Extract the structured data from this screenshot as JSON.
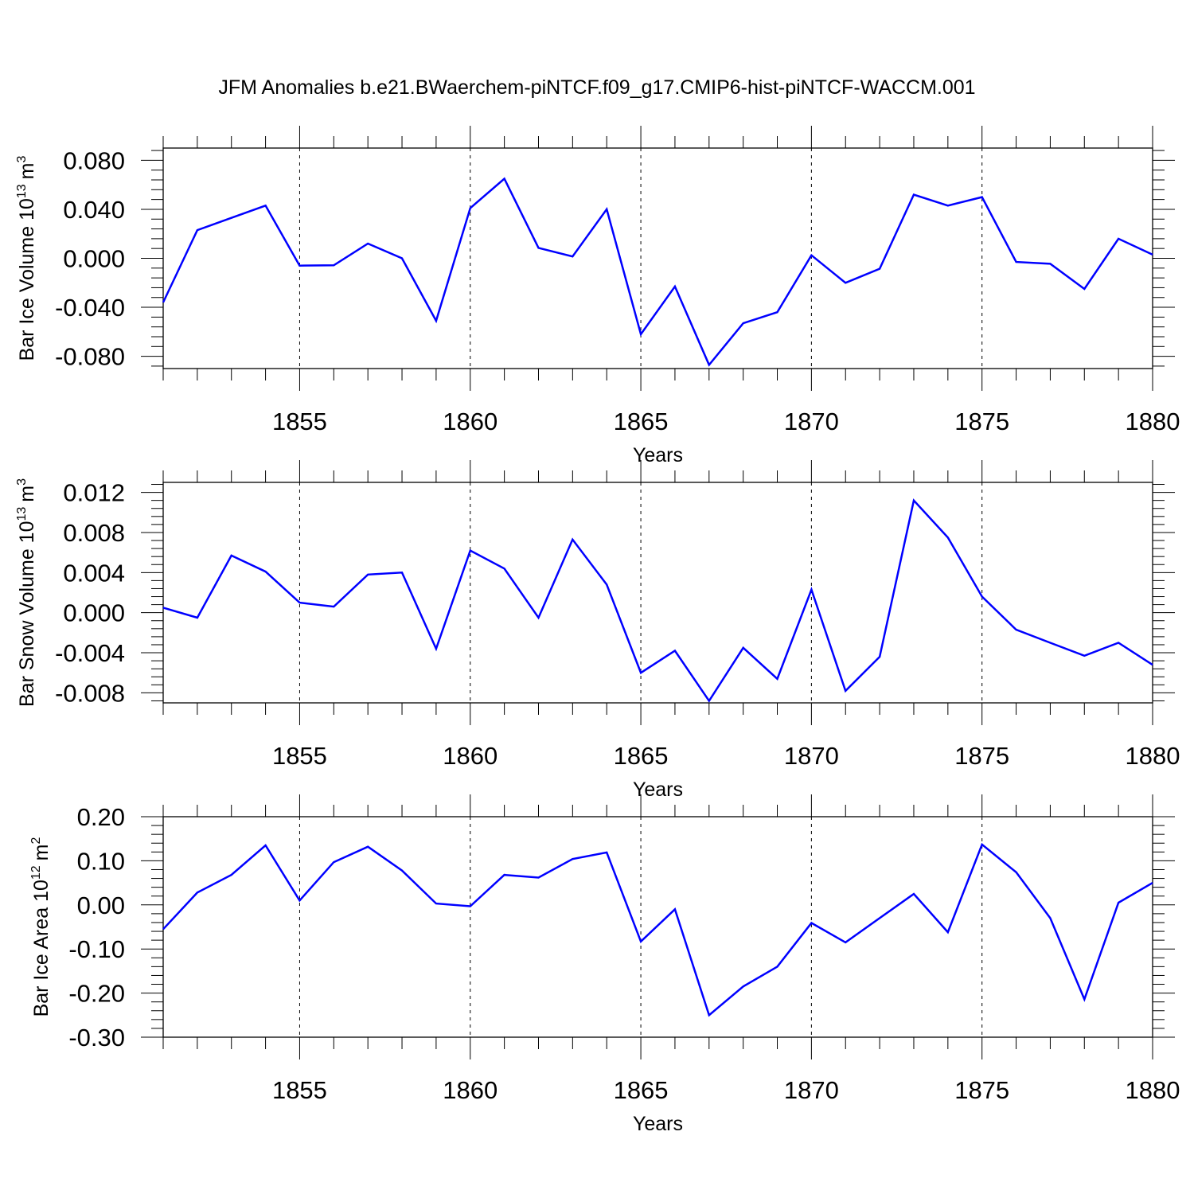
{
  "figure_title": "JFM Anomalies b.e21.BWaerchem-piNTCF.f09_g17.CMIP6-hist-piNTCF-WACCM.001",
  "colors": {
    "line": "#0000ff",
    "axis": "#000000",
    "gridline": "#000000"
  },
  "chart_data": [
    {
      "type": "line",
      "title": "",
      "xlabel": "Years",
      "ylabel": "Bar Ice Volume 10",
      "ylabel_exp": "13",
      "ylabel_unit": "m",
      "ylabel_unit_exp": "3",
      "xlim": [
        1851,
        1880
      ],
      "ylim": [
        -0.09,
        0.09
      ],
      "yticks": [
        0.08,
        0.04,
        0.0,
        -0.04,
        -0.08
      ],
      "ytick_labels": [
        "0.080",
        "0.040",
        "0.000",
        "-0.040",
        "-0.080"
      ],
      "xticks": [
        1855,
        1860,
        1865,
        1870,
        1875,
        1880
      ],
      "xtick_labels": [
        "1855",
        "1860",
        "1865",
        "1870",
        "1875",
        "1880"
      ],
      "vgrid_years": [
        1855,
        1860,
        1865,
        1870,
        1875
      ],
      "x": [
        1851,
        1852,
        1853,
        1854,
        1855,
        1856,
        1857,
        1858,
        1859,
        1860,
        1861,
        1862,
        1863,
        1864,
        1865,
        1866,
        1867,
        1868,
        1869,
        1870,
        1871,
        1872,
        1873,
        1874,
        1875,
        1876,
        1877,
        1878,
        1879,
        1880
      ],
      "series": [
        {
          "name": "Bar Ice Volume",
          "values": [
            -0.036,
            0.023,
            0.033,
            0.043,
            -0.006,
            -0.0057,
            0.012,
            0.0,
            -0.051,
            0.041,
            0.065,
            0.0085,
            0.0015,
            0.04,
            -0.062,
            -0.023,
            -0.087,
            -0.053,
            -0.044,
            0.0025,
            -0.02,
            -0.0085,
            0.052,
            0.043,
            0.05,
            -0.003,
            -0.0045,
            -0.025,
            0.016,
            0.003
          ]
        }
      ]
    },
    {
      "type": "line",
      "title": "",
      "xlabel": "Years",
      "ylabel": "Bar Snow Volume 10",
      "ylabel_exp": "13",
      "ylabel_unit": "m",
      "ylabel_unit_exp": "3",
      "xlim": [
        1851,
        1880
      ],
      "ylim": [
        -0.009,
        0.013
      ],
      "yticks": [
        0.012,
        0.008,
        0.004,
        0.0,
        -0.004,
        -0.008
      ],
      "ytick_labels": [
        "0.012",
        "0.008",
        "0.004",
        "0.000",
        "-0.004",
        "-0.008"
      ],
      "xticks": [
        1855,
        1860,
        1865,
        1870,
        1875,
        1880
      ],
      "xtick_labels": [
        "1855",
        "1860",
        "1865",
        "1870",
        "1875",
        "1880"
      ],
      "vgrid_years": [
        1855,
        1860,
        1865,
        1870,
        1875
      ],
      "x": [
        1851,
        1852,
        1853,
        1854,
        1855,
        1856,
        1857,
        1858,
        1859,
        1860,
        1861,
        1862,
        1863,
        1864,
        1865,
        1866,
        1867,
        1868,
        1869,
        1870,
        1871,
        1872,
        1873,
        1874,
        1875,
        1876,
        1877,
        1878,
        1879,
        1880
      ],
      "series": [
        {
          "name": "Bar Snow Volume",
          "values": [
            0.0005,
            -0.0005,
            0.0057,
            0.0041,
            0.001,
            0.0006,
            0.0038,
            0.004,
            -0.0036,
            0.0062,
            0.0044,
            -0.0005,
            0.0073,
            0.0028,
            -0.006,
            -0.0038,
            -0.0088,
            -0.0035,
            -0.0066,
            0.0023,
            -0.0078,
            -0.0044,
            0.0112,
            0.0075,
            0.0016,
            -0.0017,
            -0.003,
            -0.0043,
            -0.003,
            -0.0052
          ]
        }
      ]
    },
    {
      "type": "line",
      "title": "",
      "xlabel": "Years",
      "ylabel": "Bar Ice Area 10",
      "ylabel_exp": "12",
      "ylabel_unit": "m",
      "ylabel_unit_exp": "2",
      "xlim": [
        1851,
        1880
      ],
      "ylim": [
        -0.3,
        0.2
      ],
      "yticks": [
        0.2,
        0.1,
        0.0,
        -0.1,
        -0.2,
        -0.3
      ],
      "ytick_labels": [
        "0.20",
        "0.10",
        "0.00",
        "-0.10",
        "-0.20",
        "-0.30"
      ],
      "xticks": [
        1855,
        1860,
        1865,
        1870,
        1875,
        1880
      ],
      "xtick_labels": [
        "1855",
        "1860",
        "1865",
        "1870",
        "1875",
        "1880"
      ],
      "vgrid_years": [
        1855,
        1860,
        1865,
        1870,
        1875
      ],
      "x": [
        1851,
        1852,
        1853,
        1854,
        1855,
        1856,
        1857,
        1858,
        1859,
        1860,
        1861,
        1862,
        1863,
        1864,
        1865,
        1866,
        1867,
        1868,
        1869,
        1870,
        1871,
        1872,
        1873,
        1874,
        1875,
        1876,
        1877,
        1878,
        1879,
        1880
      ],
      "series": [
        {
          "name": "Bar Ice Area",
          "values": [
            -0.055,
            0.028,
            0.068,
            0.135,
            0.01,
            0.097,
            0.132,
            0.078,
            0.003,
            -0.003,
            0.068,
            0.062,
            0.104,
            0.119,
            -0.083,
            -0.01,
            -0.25,
            -0.185,
            -0.14,
            -0.041,
            -0.085,
            -0.03,
            0.025,
            -0.062,
            0.137,
            0.074,
            -0.03,
            -0.214,
            0.005,
            0.05
          ]
        }
      ]
    }
  ]
}
